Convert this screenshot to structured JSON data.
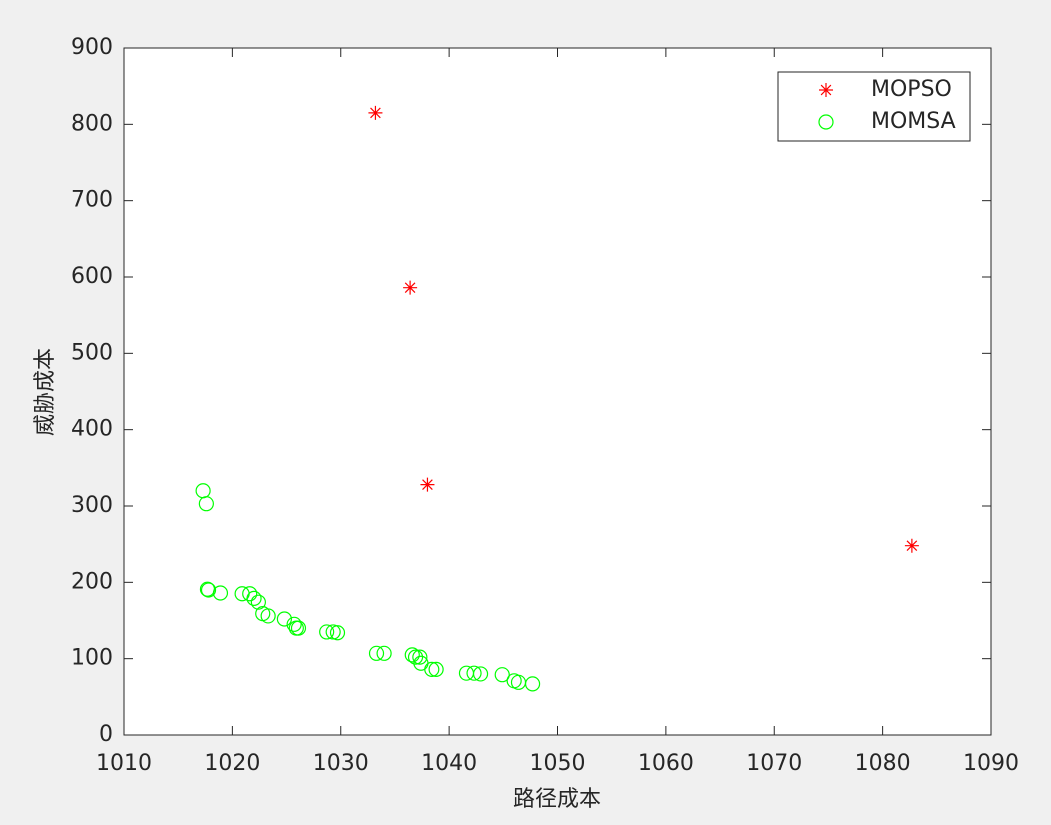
{
  "chart_data": {
    "type": "scatter",
    "xlabel": "路径成本",
    "ylabel": "威胁成本",
    "xlim": [
      1010,
      1090
    ],
    "ylim": [
      0,
      900
    ],
    "xticks": [
      1010,
      1020,
      1030,
      1040,
      1050,
      1060,
      1070,
      1080,
      1090
    ],
    "yticks": [
      0,
      100,
      200,
      300,
      400,
      500,
      600,
      700,
      800,
      900
    ],
    "grid": false,
    "legend": "northeast",
    "series": [
      {
        "name": "MOPSO",
        "color": "#ff0000",
        "marker": "*",
        "x": [
          1033.2,
          1036.4,
          1038.0,
          1082.7
        ],
        "values": [
          815,
          586,
          328,
          248
        ]
      },
      {
        "name": "MOMSA",
        "color": "#00ff00",
        "marker": "o",
        "x": [
          1017.3,
          1017.6,
          1017.7,
          1017.8,
          1018.9,
          1020.9,
          1021.6,
          1022.0,
          1022.4,
          1022.8,
          1023.3,
          1024.8,
          1025.7,
          1025.9,
          1026.1,
          1028.7,
          1029.3,
          1029.7,
          1033.3,
          1034.0,
          1036.6,
          1036.9,
          1037.3,
          1037.4,
          1038.4,
          1038.8,
          1041.6,
          1042.3,
          1042.9,
          1044.9,
          1046.0,
          1046.4,
          1047.7
        ],
        "values": [
          320,
          303,
          191,
          190,
          186,
          185,
          185,
          179,
          174,
          159,
          156,
          152,
          145,
          140,
          140,
          135,
          135,
          134,
          107,
          107,
          105,
          102,
          102,
          94,
          86,
          86,
          81,
          81,
          80,
          79,
          71,
          69,
          67
        ]
      }
    ]
  }
}
